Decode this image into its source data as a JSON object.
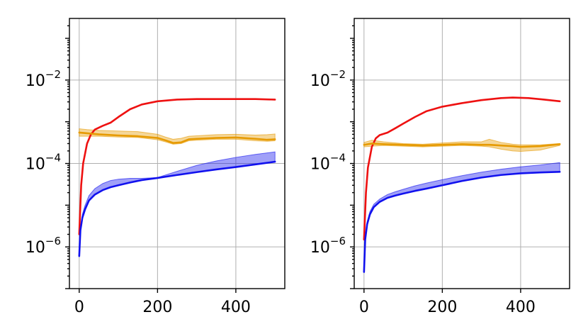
{
  "chart_data": [
    {
      "type": "line",
      "xlim": [
        -25,
        525
      ],
      "ylim": [
        1e-07,
        0.3
      ],
      "yscale": "log",
      "xticks": [
        "0",
        "200",
        "400"
      ],
      "yticks": [
        {
          "base": "10",
          "exp": "−6"
        },
        {
          "base": "10",
          "exp": "−4"
        },
        {
          "base": "10",
          "exp": "−2"
        }
      ],
      "grid": true,
      "series": [
        {
          "color": "#ee1111",
          "x": [
            0,
            5,
            10,
            20,
            30,
            40,
            60,
            80,
            100,
            130,
            160,
            200,
            250,
            300,
            350,
            400,
            450,
            500
          ],
          "y": [
            2e-06,
            3e-05,
            0.0001,
            0.0003,
            0.0005,
            0.00065,
            0.0008,
            0.00095,
            0.0013,
            0.002,
            0.0026,
            0.0031,
            0.0034,
            0.0035,
            0.0035,
            0.0035,
            0.0035,
            0.0034
          ]
        },
        {
          "color": "#e69a00",
          "x": [
            0,
            20,
            50,
            100,
            150,
            200,
            220,
            240,
            260,
            280,
            300,
            350,
            400,
            450,
            480,
            500
          ],
          "y": [
            0.00055,
            0.00053,
            0.0005,
            0.00047,
            0.00045,
            0.00041,
            0.00036,
            0.00031,
            0.00032,
            0.00038,
            0.00039,
            0.00041,
            0.00042,
            0.00039,
            0.00037,
            0.00038
          ],
          "upper": [
            0.00068,
            0.00065,
            0.00062,
            0.0006,
            0.00058,
            0.0005,
            0.00043,
            0.00038,
            0.0004,
            0.00045,
            0.00046,
            0.00049,
            0.0005,
            0.00048,
            0.00049,
            0.00051
          ],
          "lower": [
            0.00045,
            0.00045,
            0.00045,
            0.00043,
            0.00042,
            0.00037,
            0.00033,
            0.00029,
            0.0003,
            0.00035,
            0.00036,
            0.00038,
            0.00038,
            0.00035,
            0.00034,
            0.00035
          ]
        },
        {
          "color": "#1111ee",
          "x": [
            0,
            3,
            8,
            15,
            25,
            40,
            60,
            80,
            100,
            130,
            160,
            200,
            250,
            300,
            350,
            400,
            450,
            500
          ],
          "y": [
            6e-07,
            2.5e-06,
            5e-06,
            8e-06,
            1.3e-05,
            1.8e-05,
            2.3e-05,
            2.7e-05,
            3e-05,
            3.5e-05,
            4e-05,
            4.5e-05,
            5.3e-05,
            6.2e-05,
            7.2e-05,
            8.2e-05,
            9.5e-05,
            0.00011
          ],
          "upper": [
            6e-07,
            2.8e-06,
            6e-06,
            1e-05,
            1.7e-05,
            2.5e-05,
            3.3e-05,
            3.9e-05,
            4.2e-05,
            4.4e-05,
            4.4e-05,
            4.6e-05,
            6.5e-05,
            9e-05,
            0.000115,
            0.00014,
            0.000165,
            0.00019
          ],
          "lower": [
            6e-07,
            2.5e-06,
            5e-06,
            8e-06,
            1.3e-05,
            1.8e-05,
            2.3e-05,
            2.7e-05,
            3e-05,
            3.5e-05,
            4e-05,
            4.5e-05,
            5.3e-05,
            6.2e-05,
            7.2e-05,
            8.2e-05,
            9.5e-05,
            0.00011
          ]
        }
      ]
    },
    {
      "type": "line",
      "xlim": [
        -25,
        525
      ],
      "ylim": [
        1e-07,
        0.3
      ],
      "yscale": "log",
      "xticks": [
        "0",
        "200",
        "400"
      ],
      "yticks": [
        {
          "base": "10",
          "exp": "−6"
        },
        {
          "base": "10",
          "exp": "−4"
        },
        {
          "base": "10",
          "exp": "−2"
        }
      ],
      "grid": true,
      "series": [
        {
          "color": "#ee1111",
          "x": [
            0,
            5,
            10,
            20,
            30,
            40,
            60,
            80,
            100,
            130,
            160,
            200,
            250,
            300,
            350,
            380,
            420,
            460,
            500
          ],
          "y": [
            1.5e-06,
            2e-05,
            8e-05,
            0.00025,
            0.0004,
            0.00048,
            0.00055,
            0.0007,
            0.0009,
            0.0013,
            0.0018,
            0.0023,
            0.0028,
            0.0033,
            0.0037,
            0.0038,
            0.0037,
            0.0034,
            0.0031
          ]
        },
        {
          "color": "#e69a00",
          "x": [
            0,
            20,
            50,
            100,
            150,
            200,
            250,
            300,
            320,
            350,
            380,
            400,
            450,
            500
          ],
          "y": [
            0.00028,
            0.0003,
            0.00029,
            0.00028,
            0.00027,
            0.00028,
            0.00029,
            0.00028,
            0.00028,
            0.00027,
            0.00026,
            0.00025,
            0.00026,
            0.00029
          ],
          "upper": [
            0.00032,
            0.00036,
            0.00033,
            0.0003,
            0.00029,
            0.00031,
            0.00033,
            0.00033,
            0.00038,
            0.00032,
            0.00029,
            0.00028,
            0.00028,
            0.0003
          ],
          "lower": [
            0.00025,
            0.00026,
            0.00027,
            0.00026,
            0.00025,
            0.00026,
            0.00027,
            0.00026,
            0.00025,
            0.00022,
            0.0002,
            0.000195,
            0.00021,
            0.00027
          ]
        },
        {
          "color": "#1111ee",
          "x": [
            0,
            3,
            8,
            15,
            25,
            40,
            60,
            80,
            100,
            130,
            160,
            200,
            250,
            300,
            350,
            400,
            450,
            500
          ],
          "y": [
            2.5e-07,
            1.5e-06,
            3.5e-06,
            6e-06,
            9e-06,
            1.2e-05,
            1.5e-05,
            1.7e-05,
            1.9e-05,
            2.2e-05,
            2.5e-05,
            3e-05,
            3.8e-05,
            4.6e-05,
            5.3e-05,
            5.8e-05,
            6.1e-05,
            6.3e-05
          ],
          "upper": [
            2.5e-07,
            1.6e-06,
            4e-06,
            7e-06,
            1.05e-05,
            1.4e-05,
            1.8e-05,
            2.1e-05,
            2.4e-05,
            2.9e-05,
            3.4e-05,
            4.1e-05,
            5.1e-05,
            6.2e-05,
            7.3e-05,
            8.3e-05,
            9.2e-05,
            0.000105
          ],
          "lower": [
            2.5e-07,
            1.5e-06,
            3.5e-06,
            6e-06,
            9e-06,
            1.2e-05,
            1.5e-05,
            1.7e-05,
            1.9e-05,
            2.2e-05,
            2.5e-05,
            3e-05,
            3.8e-05,
            4.6e-05,
            5.3e-05,
            5.8e-05,
            6.1e-05,
            6.3e-05
          ]
        }
      ]
    }
  ]
}
